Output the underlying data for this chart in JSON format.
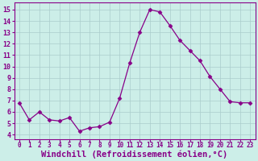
{
  "x": [
    0,
    1,
    2,
    3,
    4,
    5,
    6,
    7,
    8,
    9,
    10,
    11,
    12,
    13,
    14,
    15,
    16,
    17,
    18,
    19,
    20,
    21,
    22,
    23
  ],
  "y": [
    6.8,
    5.3,
    6.0,
    5.3,
    5.2,
    5.5,
    4.3,
    4.6,
    4.7,
    5.1,
    7.2,
    10.3,
    13.0,
    15.0,
    14.8,
    13.6,
    12.3,
    11.4,
    10.5,
    9.1,
    8.0,
    6.9,
    6.8,
    6.8
  ],
  "line_color": "#880088",
  "marker": "D",
  "marker_size": 2.5,
  "xlabel": "Windchill (Refroidissement éolien,°C)",
  "xlabel_fontsize": 7.5,
  "ylabel_ticks": [
    4,
    5,
    6,
    7,
    8,
    9,
    10,
    11,
    12,
    13,
    14,
    15
  ],
  "xlim": [
    -0.5,
    23.5
  ],
  "ylim": [
    3.6,
    15.6
  ],
  "bg_color": "#cceee8",
  "grid_color": "#aacccc",
  "tick_label_color": "#880088",
  "font_color": "#880088"
}
